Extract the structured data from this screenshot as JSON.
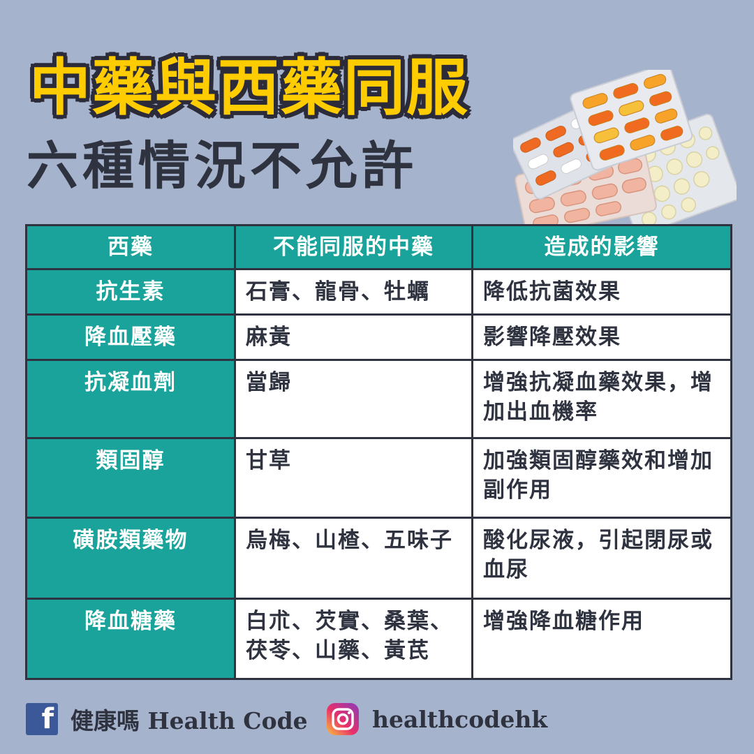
{
  "header": {
    "title": "中藥與西藥同服",
    "subtitle": "六種情況不允許"
  },
  "table": {
    "headers": [
      "西藥",
      "不能同服的中藥",
      "造成的影響"
    ],
    "rows": [
      {
        "western": "抗生素",
        "chinese": "石膏、龍骨、牡蠣",
        "effect": "降低抗菌效果"
      },
      {
        "western": "降血壓藥",
        "chinese": "麻黃",
        "effect": "影響降壓效果"
      },
      {
        "western": "抗凝血劑",
        "chinese": "當歸",
        "effect": "增強抗凝血藥效果，增加出血機率"
      },
      {
        "western": "類固醇",
        "chinese": "甘草",
        "effect": "加強類固醇藥效和增加副作用"
      },
      {
        "western": "磺胺類藥物",
        "chinese": "烏梅、山楂、五味子",
        "effect": "酸化尿液，引起閉尿或血尿"
      },
      {
        "western": "降血糖藥",
        "chinese": "白朮、芡實、桑葉、茯苓、山藥、黃芪",
        "effect": "增強降血糖作用"
      }
    ]
  },
  "footer": {
    "facebook_icon_glyph": "f",
    "facebook_name": "健康嗎 Health Code",
    "instagram_handle": "healthcodehk"
  },
  "colors": {
    "background": "#a6b3cc",
    "title_yellow": "#ffcc00",
    "dark": "#2f3340",
    "teal": "#1aa39a",
    "facebook_blue": "#3b5998"
  }
}
